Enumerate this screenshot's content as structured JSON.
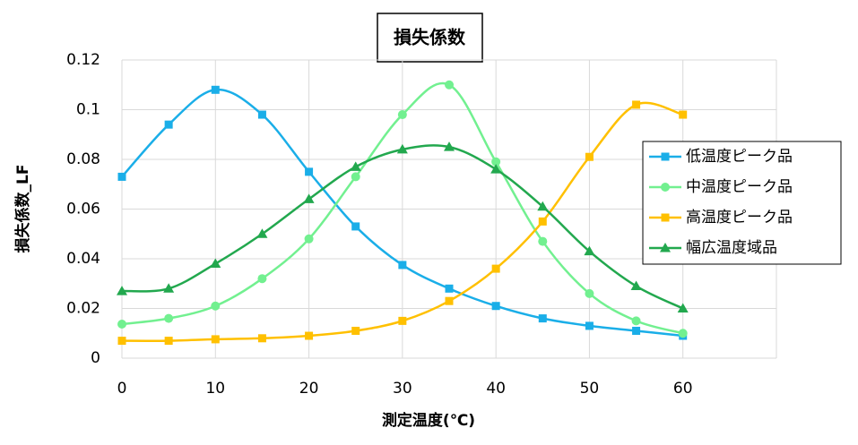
{
  "chart_data": {
    "type": "line",
    "title": "損失係数",
    "x_label": "測定温度(℃)",
    "y_label": "損失係数_LF",
    "x": [
      0,
      5,
      10,
      15,
      20,
      25,
      30,
      35,
      40,
      45,
      50,
      55,
      60
    ],
    "series": [
      {
        "name": "低温度ピーク品",
        "color": "#1aaee8",
        "marker": "square",
        "values": [
          0.073,
          0.094,
          0.108,
          0.098,
          0.075,
          0.053,
          0.0375,
          0.028,
          0.021,
          0.016,
          0.013,
          0.011,
          0.009
        ]
      },
      {
        "name": "中温度ピーク品",
        "color": "#72f090",
        "marker": "circle",
        "values": [
          0.0137,
          0.016,
          0.021,
          0.032,
          0.048,
          0.073,
          0.098,
          0.11,
          0.079,
          0.047,
          0.026,
          0.015,
          0.01
        ]
      },
      {
        "name": "高温度ピーク品",
        "color": "#ffc000",
        "marker": "square",
        "values": [
          0.007,
          0.007,
          0.0076,
          0.008,
          0.009,
          0.011,
          0.015,
          0.023,
          0.036,
          0.055,
          0.081,
          0.102,
          0.098
        ]
      },
      {
        "name": "幅広温度域品",
        "color": "#22a84e",
        "marker": "triangle",
        "values": [
          0.027,
          0.028,
          0.038,
          0.05,
          0.064,
          0.077,
          0.084,
          0.085,
          0.076,
          0.061,
          0.043,
          0.029,
          0.02
        ]
      }
    ],
    "xlim": [
      0,
      70
    ],
    "xticks": [
      0,
      10,
      20,
      30,
      40,
      50,
      60
    ],
    "ylim": [
      0,
      0.12
    ],
    "yticks": [
      0,
      0.02,
      0.04,
      0.06,
      0.08,
      0.1,
      0.12
    ],
    "grid": true,
    "smooth": true,
    "legend": "right"
  }
}
